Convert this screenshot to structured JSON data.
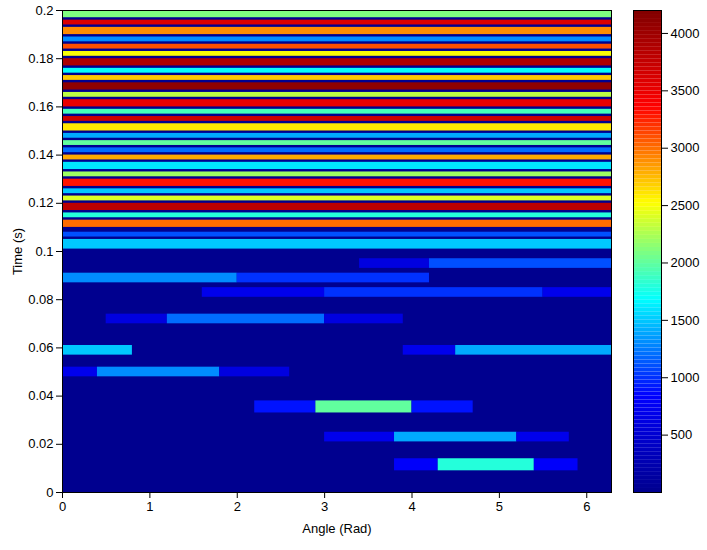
{
  "chart_data": {
    "type": "heatmap",
    "x_label": "Angle (Rad)",
    "y_label": "Time (s)",
    "xlim": [
      0,
      6.2832
    ],
    "xticks": [
      0,
      1,
      2,
      3,
      4,
      5,
      6
    ],
    "ylim": [
      0,
      0.2
    ],
    "yticks": [
      0,
      0.02,
      0.04,
      0.06,
      0.08,
      0.1,
      0.12,
      0.14,
      0.16,
      0.18,
      0.2
    ],
    "colorbar_lim": [
      0,
      4200
    ],
    "colorbar_ticks": [
      500,
      1000,
      1500,
      2000,
      2500,
      3000,
      3500,
      4000
    ],
    "cells": [
      {
        "t0": 0.009,
        "t1": 0.014,
        "a0": 3.8,
        "a1": 4.3,
        "value": 800
      },
      {
        "t0": 0.009,
        "t1": 0.014,
        "a0": 4.3,
        "a1": 5.4,
        "value": 1800
      },
      {
        "t0": 0.009,
        "t1": 0.014,
        "a0": 5.4,
        "a1": 5.9,
        "value": 800
      },
      {
        "t0": 0.021,
        "t1": 0.025,
        "a0": 3.0,
        "a1": 3.8,
        "value": 700
      },
      {
        "t0": 0.021,
        "t1": 0.025,
        "a0": 3.8,
        "a1": 5.2,
        "value": 1400
      },
      {
        "t0": 0.021,
        "t1": 0.025,
        "a0": 5.2,
        "a1": 5.8,
        "value": 700
      },
      {
        "t0": 0.033,
        "t1": 0.038,
        "a0": 2.2,
        "a1": 2.9,
        "value": 900
      },
      {
        "t0": 0.033,
        "t1": 0.038,
        "a0": 2.9,
        "a1": 4.0,
        "value": 2000
      },
      {
        "t0": 0.033,
        "t1": 0.038,
        "a0": 4.0,
        "a1": 4.7,
        "value": 900
      },
      {
        "t0": 0.048,
        "t1": 0.052,
        "a0": 0,
        "a1": 0.4,
        "value": 700
      },
      {
        "t0": 0.048,
        "t1": 0.052,
        "a0": 0.4,
        "a1": 1.8,
        "value": 1300
      },
      {
        "t0": 0.048,
        "t1": 0.052,
        "a0": 1.8,
        "a1": 2.6,
        "value": 600
      },
      {
        "t0": 0.057,
        "t1": 0.061,
        "a0": 0,
        "a1": 0.8,
        "value": 1500
      },
      {
        "t0": 0.057,
        "t1": 0.061,
        "a0": 3.9,
        "a1": 4.5,
        "value": 700
      },
      {
        "t0": 0.057,
        "t1": 0.061,
        "a0": 4.5,
        "a1": 6.2832,
        "value": 1400
      },
      {
        "t0": 0.07,
        "t1": 0.074,
        "a0": 0.5,
        "a1": 1.2,
        "value": 600
      },
      {
        "t0": 0.07,
        "t1": 0.074,
        "a0": 1.2,
        "a1": 3.0,
        "value": 1200
      },
      {
        "t0": 0.07,
        "t1": 0.074,
        "a0": 3.0,
        "a1": 3.9,
        "value": 600
      },
      {
        "t0": 0.081,
        "t1": 0.085,
        "a0": 1.6,
        "a1": 3.0,
        "value": 700
      },
      {
        "t0": 0.081,
        "t1": 0.085,
        "a0": 3.0,
        "a1": 5.5,
        "value": 1000
      },
      {
        "t0": 0.081,
        "t1": 0.085,
        "a0": 5.5,
        "a1": 6.2832,
        "value": 700
      },
      {
        "t0": 0.087,
        "t1": 0.091,
        "a0": 0,
        "a1": 2.0,
        "value": 1300
      },
      {
        "t0": 0.087,
        "t1": 0.091,
        "a0": 2.0,
        "a1": 4.2,
        "value": 1000
      },
      {
        "t0": 0.093,
        "t1": 0.097,
        "a0": 3.4,
        "a1": 4.2,
        "value": 600
      },
      {
        "t0": 0.093,
        "t1": 0.097,
        "a0": 4.2,
        "a1": 6.2832,
        "value": 1100
      },
      {
        "t0": 0.101,
        "t1": 0.105,
        "a0": 0,
        "a1": 6.2832,
        "value": 1500
      },
      {
        "t0": 0.106,
        "t1": 0.108,
        "a0": 0,
        "a1": 6.2832,
        "value": 1100
      },
      {
        "t0": 0.11,
        "t1": 0.113,
        "a0": 0,
        "a1": 6.2832,
        "value": 3000
      },
      {
        "t0": 0.114,
        "t1": 0.116,
        "a0": 0,
        "a1": 6.2832,
        "value": 1800
      },
      {
        "t0": 0.117,
        "t1": 0.12,
        "a0": 0,
        "a1": 6.2832,
        "value": 3800
      },
      {
        "t0": 0.121,
        "t1": 0.123,
        "a0": 0,
        "a1": 6.2832,
        "value": 2400
      },
      {
        "t0": 0.124,
        "t1": 0.126,
        "a0": 0,
        "a1": 6.2832,
        "value": 1500
      },
      {
        "t0": 0.127,
        "t1": 0.13,
        "a0": 0,
        "a1": 6.2832,
        "value": 3300
      },
      {
        "t0": 0.131,
        "t1": 0.133,
        "a0": 0,
        "a1": 6.2832,
        "value": 2200
      },
      {
        "t0": 0.134,
        "t1": 0.137,
        "a0": 0,
        "a1": 6.2832,
        "value": 1600
      },
      {
        "t0": 0.138,
        "t1": 0.14,
        "a0": 0,
        "a1": 6.2832,
        "value": 2800
      },
      {
        "t0": 0.141,
        "t1": 0.143,
        "a0": 0,
        "a1": 6.2832,
        "value": 1200
      },
      {
        "t0": 0.144,
        "t1": 0.146,
        "a0": 0,
        "a1": 6.2832,
        "value": 2000
      },
      {
        "t0": 0.147,
        "t1": 0.149,
        "a0": 0,
        "a1": 6.2832,
        "value": 1400
      },
      {
        "t0": 0.15,
        "t1": 0.153,
        "a0": 0,
        "a1": 6.2832,
        "value": 2600
      },
      {
        "t0": 0.154,
        "t1": 0.156,
        "a0": 0,
        "a1": 6.2832,
        "value": 3700
      },
      {
        "t0": 0.157,
        "t1": 0.159,
        "a0": 0,
        "a1": 6.2832,
        "value": 1900
      },
      {
        "t0": 0.16,
        "t1": 0.163,
        "a0": 0,
        "a1": 6.2832,
        "value": 3500
      },
      {
        "t0": 0.164,
        "t1": 0.166,
        "a0": 0,
        "a1": 6.2832,
        "value": 2300
      },
      {
        "t0": 0.167,
        "t1": 0.17,
        "a0": 0,
        "a1": 6.2832,
        "value": 4100
      },
      {
        "t0": 0.171,
        "t1": 0.173,
        "a0": 0,
        "a1": 6.2832,
        "value": 2700
      },
      {
        "t0": 0.174,
        "t1": 0.176,
        "a0": 0,
        "a1": 6.2832,
        "value": 1700
      },
      {
        "t0": 0.177,
        "t1": 0.18,
        "a0": 0,
        "a1": 6.2832,
        "value": 3900
      },
      {
        "t0": 0.181,
        "t1": 0.183,
        "a0": 0,
        "a1": 6.2832,
        "value": 2500
      },
      {
        "t0": 0.184,
        "t1": 0.186,
        "a0": 0,
        "a1": 6.2832,
        "value": 3100
      },
      {
        "t0": 0.187,
        "t1": 0.189,
        "a0": 0,
        "a1": 6.2832,
        "value": 1300
      },
      {
        "t0": 0.19,
        "t1": 0.193,
        "a0": 0,
        "a1": 6.2832,
        "value": 2900
      },
      {
        "t0": 0.194,
        "t1": 0.196,
        "a0": 0,
        "a1": 6.2832,
        "value": 3600
      },
      {
        "t0": 0.197,
        "t1": 0.2,
        "a0": 0,
        "a1": 6.2832,
        "value": 2100
      }
    ]
  }
}
